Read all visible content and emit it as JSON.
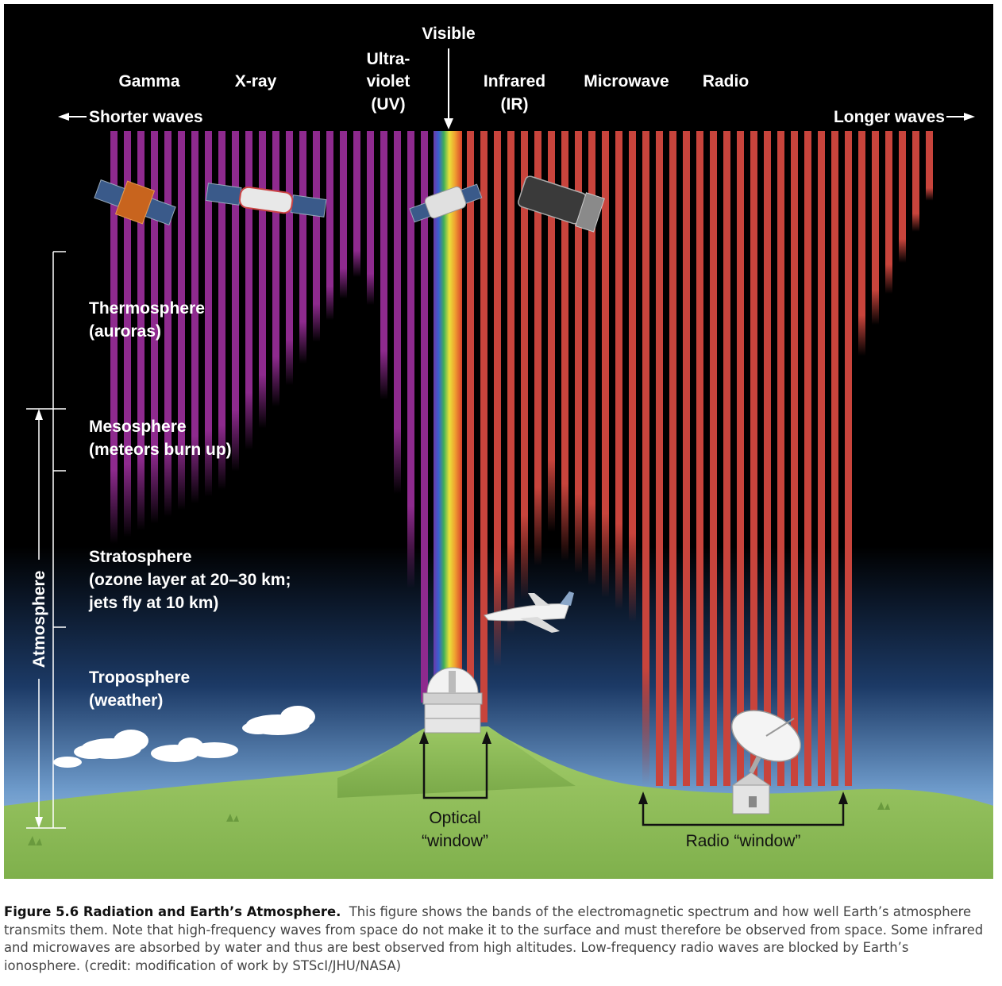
{
  "bands": {
    "gamma": "Gamma",
    "xray": "X-ray",
    "uv_line1": "Ultra-",
    "uv_line2": "violet",
    "uv_line3": "(UV)",
    "visible": "Visible",
    "ir_line1": "Infrared",
    "ir_line2": "(IR)",
    "microwave": "Microwave",
    "radio": "Radio"
  },
  "directions": {
    "shorter": "Shorter waves",
    "longer": "Longer waves"
  },
  "layers": {
    "thermo_1": "Thermosphere",
    "thermo_2": "(auroras)",
    "meso_1": "Mesosphere",
    "meso_2": "(meteors burn up)",
    "strato_1": "Stratosphere",
    "strato_2": "(ozone layer at 20–30 km;",
    "strato_3": "jets fly at 10 km)",
    "tropo_1": "Troposphere",
    "tropo_2": "(weather)"
  },
  "atmosphere_label": "Atmosphere",
  "windows": {
    "optical_1": "Optical",
    "optical_2": "“window”",
    "radio": "Radio “window”"
  },
  "colors": {
    "space": "#000000",
    "short_waves": "#8e2a8e",
    "long_waves": "#c8443c",
    "ground": "#8fbf5a",
    "sky_low": "#a9c8e8"
  },
  "caption": {
    "title": "Figure 5.6 Radiation and Earth’s Atmosphere.",
    "body": "This figure shows the bands of the electromagnetic spectrum and how well Earth’s atmosphere transmits them. Note that high-frequency waves from space do not make it to the surface and must therefore be observed from space. Some infrared and microwaves are absorbed by water and thus are best observed from high altitudes. Low-frequency radio waves are blocked by Earth’s ionosphere. (credit: modification of work by STScI/JHU/NASA)"
  }
}
